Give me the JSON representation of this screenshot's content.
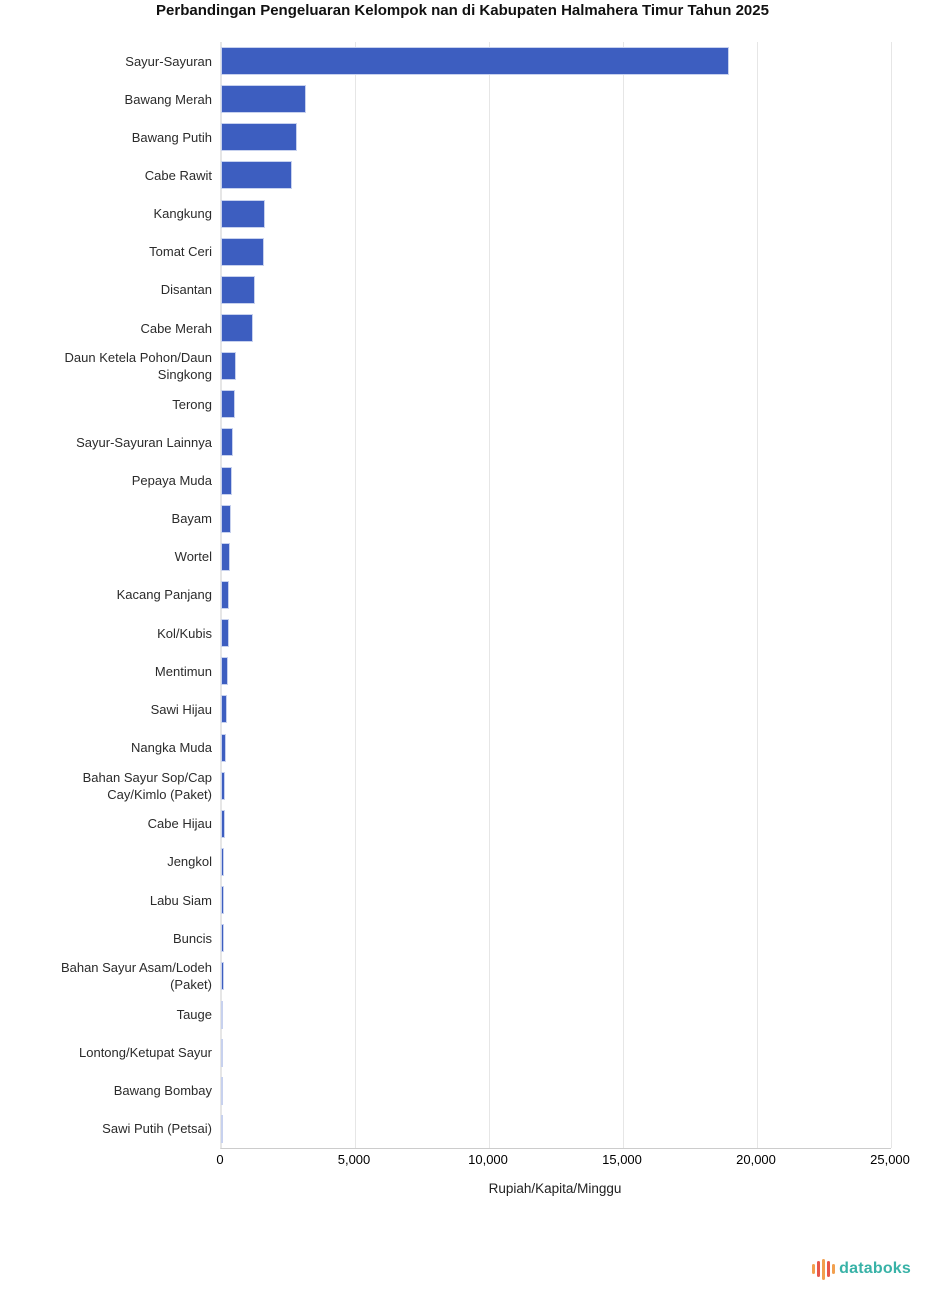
{
  "chart_data": {
    "type": "bar",
    "orientation": "horizontal",
    "title": "Perbandingan Pengeluaran Kelompok nan di Kabupaten Halmahera Timur Tahun 2025",
    "xlabel": "Rupiah/Kapita/Minggu",
    "xlim": [
      0,
      25000
    ],
    "x_ticks": [
      0,
      5000,
      10000,
      15000,
      20000,
      25000
    ],
    "x_tick_labels": [
      "0",
      "5,000",
      "10,000",
      "15,000",
      "20,000",
      "25,000"
    ],
    "grid": "vertical-only",
    "legend": "none",
    "categories": [
      "Sayur-Sayuran",
      "Bawang Merah",
      "Bawang Putih",
      "Cabe Rawit",
      "Kangkung",
      "Tomat Ceri",
      "Disantan",
      "Cabe Merah",
      "Daun Ketela Pohon/Daun Singkong",
      "Terong",
      "Sayur-Sayuran Lainnya",
      "Pepaya Muda",
      "Bayam",
      "Wortel",
      "Kacang Panjang",
      "Kol/Kubis",
      "Mentimun",
      "Sawi Hijau",
      "Nangka Muda",
      "Bahan Sayur Sop/Cap Cay/Kimlo (Paket)",
      "Cabe Hijau",
      "Jengkol",
      "Labu Siam",
      "Buncis",
      "Bahan Sayur Asam/Lodeh (Paket)",
      "Tauge",
      "Lontong/Ketupat Sayur",
      "Bawang Bombay",
      "Sawi Putih (Petsai)"
    ],
    "values": [
      18950,
      3180,
      2850,
      2650,
      1660,
      1610,
      1250,
      1200,
      570,
      520,
      430,
      410,
      370,
      350,
      300,
      280,
      265,
      210,
      185,
      160,
      150,
      125,
      115,
      105,
      95,
      85,
      70,
      60,
      50
    ],
    "bar_color": "#3d5ec0",
    "bar_border_color": "#c7d1ee",
    "gridline_color": "#e6e6e6",
    "axis_line_color": "#cccccc"
  },
  "footer": {
    "brand": "databoks",
    "brand_text_color": "#38b2a7",
    "logo_bar_colors": [
      "#f2a04f",
      "#e8574a",
      "#f2a04f",
      "#e8574a",
      "#f2a04f"
    ],
    "logo_bar_heights": [
      10,
      16,
      21,
      16,
      10
    ]
  }
}
